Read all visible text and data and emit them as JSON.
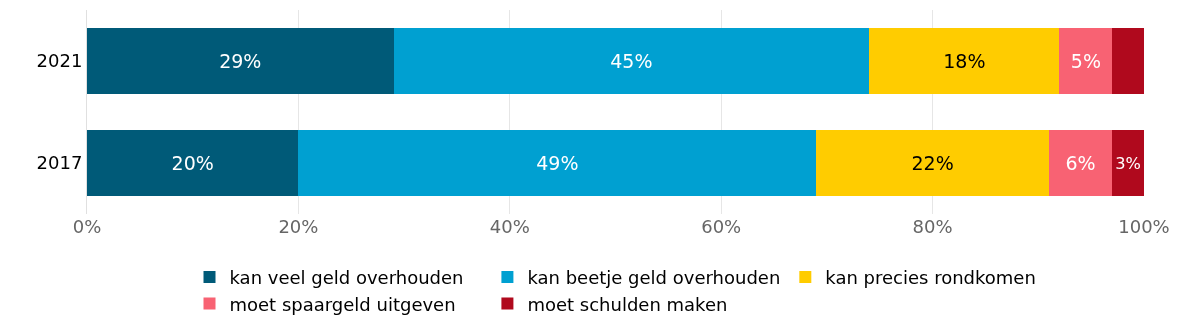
{
  "chart_data": {
    "type": "bar",
    "orientation": "horizontal",
    "stacked": true,
    "categories": [
      "2021",
      "2017"
    ],
    "series": [
      {
        "name": "kan veel geld overhouden",
        "color": "#005a78",
        "values": [
          29,
          20
        ],
        "value_labels": [
          "29%",
          "20%"
        ]
      },
      {
        "name": "kan beetje geld overhouden",
        "color": "#00a0d1",
        "values": [
          45,
          49
        ],
        "value_labels": [
          "45%",
          "49%"
        ]
      },
      {
        "name": "kan precies rondkomen",
        "color": "#ffcc00",
        "values": [
          18,
          22
        ],
        "value_labels": [
          "18%",
          "22%"
        ]
      },
      {
        "name": "moet spaargeld uitgeven",
        "color": "#f86273",
        "values": [
          5,
          6
        ],
        "value_labels": [
          "5%",
          "6%"
        ]
      },
      {
        "name": "moet schulden maken",
        "color": "#b0091d",
        "values": [
          3,
          3
        ],
        "value_labels": [
          null,
          "3%"
        ]
      }
    ],
    "xlim": [
      0,
      100
    ],
    "xticks": [
      {
        "value": 0,
        "label": "0%"
      },
      {
        "value": 20,
        "label": "20%"
      },
      {
        "value": 40,
        "label": "40%"
      },
      {
        "value": 60,
        "label": "60%"
      },
      {
        "value": 80,
        "label": "80%"
      },
      {
        "value": 100,
        "label": "100%"
      }
    ],
    "grid": "x",
    "legend": "bottom"
  }
}
